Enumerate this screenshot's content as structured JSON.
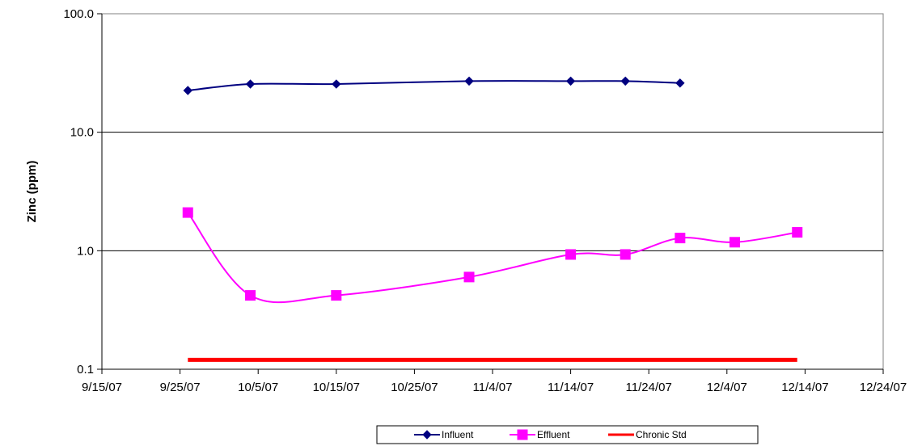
{
  "chart_data": {
    "type": "line",
    "title": "",
    "xlabel": "",
    "ylabel": "Zinc (ppm)",
    "y_scale": "log",
    "ylim": [
      0.1,
      100
    ],
    "y_ticks": [
      "0.1",
      "1.0",
      "10.0",
      "100.0"
    ],
    "xlim": [
      "9/15/07",
      "12/24/07"
    ],
    "x_ticks": [
      "9/15/07",
      "9/25/07",
      "10/5/07",
      "10/15/07",
      "10/25/07",
      "11/4/07",
      "11/14/07",
      "11/24/07",
      "12/4/07",
      "12/14/07",
      "12/24/07"
    ],
    "grid": "horizontal",
    "legend_position": "bottom",
    "series": [
      {
        "name": "Influent",
        "color": "#000080",
        "marker": "diamond",
        "points": [
          {
            "x": "9/26/07",
            "y": 22.5
          },
          {
            "x": "10/4/07",
            "y": 25.5
          },
          {
            "x": "10/15/07",
            "y": 25.5
          },
          {
            "x": "11/1/07",
            "y": 27
          },
          {
            "x": "11/14/07",
            "y": 27
          },
          {
            "x": "11/21/07",
            "y": 27
          },
          {
            "x": "11/28/07",
            "y": 26
          }
        ]
      },
      {
        "name": "Effluent",
        "color": "#FF00FF",
        "marker": "square",
        "points": [
          {
            "x": "9/26/07",
            "y": 2.1
          },
          {
            "x": "10/4/07",
            "y": 0.42
          },
          {
            "x": "10/15/07",
            "y": 0.42
          },
          {
            "x": "11/1/07",
            "y": 0.6
          },
          {
            "x": "11/14/07",
            "y": 0.93
          },
          {
            "x": "11/21/07",
            "y": 0.93
          },
          {
            "x": "11/28/07",
            "y": 1.28
          },
          {
            "x": "12/5/07",
            "y": 1.18
          },
          {
            "x": "12/13/07",
            "y": 1.43
          }
        ]
      },
      {
        "name": "Chronic Std",
        "color": "#FF0000",
        "marker": "none",
        "points": [
          {
            "x": "9/26/07",
            "y": 0.12
          },
          {
            "x": "12/13/07",
            "y": 0.12
          }
        ]
      }
    ]
  }
}
